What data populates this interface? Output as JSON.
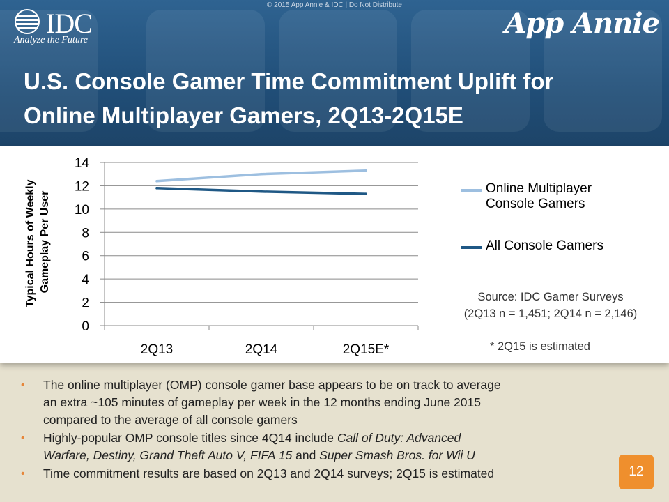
{
  "header": {
    "copyright": "© 2015 App Annie & IDC | Do Not Distribute",
    "idc_logo_text": "IDC",
    "idc_tagline": "Analyze the Future",
    "app_annie_logo": "App Annie",
    "title_line1": "U.S. Console Gamer Time Commitment Uplift for",
    "title_line2": "Online Multiplayer Gamers, 2Q13-2Q15E"
  },
  "chart_data": {
    "type": "line",
    "categories": [
      "2Q13",
      "2Q14",
      "2Q15E*"
    ],
    "series": [
      {
        "name": "Online Multiplayer Console Gamers",
        "legend_line1": "Online Multiplayer",
        "legend_line2": "Console Gamers",
        "values": [
          12.4,
          13.0,
          13.3
        ],
        "color": "#9dbfe0"
      },
      {
        "name": "All Console Gamers",
        "legend_line1": "All Console Gamers",
        "values": [
          11.8,
          11.5,
          11.3
        ],
        "color": "#1f5885"
      }
    ],
    "ylabel_line1": "Typical Hours of Weekly",
    "ylabel_line2": "Gameplay Per User",
    "ylim": [
      0,
      14
    ],
    "yticks": [
      0,
      2,
      4,
      6,
      8,
      10,
      12,
      14
    ],
    "grid": true,
    "legend_position": "right"
  },
  "source": {
    "line1": "Source: IDC Gamer Surveys",
    "line2": "(2Q13 n = 1,451; 2Q14 n = 2,146)"
  },
  "note": "* 2Q15 is estimated",
  "bullets": {
    "b1_line1": "The online multiplayer (OMP) console gamer base appears to be on track to average",
    "b1_line2": "an extra ~105 minutes of gameplay per week in the 12 months ending June 2015",
    "b1_line3": "compared to the average of all console gamers",
    "b2_line1_a": "Highly-popular OMP console titles since 4Q14 include ",
    "b2_line1_i": "Call of Duty: Advanced",
    "b2_line2_i1": "Warfare, Destiny, Grand Theft Auto V, FIFA 15",
    "b2_line2_and": " and ",
    "b2_line2_i2": "Super Smash Bros. for Wii U",
    "b3": "Time commitment results are based on 2Q13 and 2Q14 surveys; 2Q15 is estimated"
  },
  "page_number": "12"
}
